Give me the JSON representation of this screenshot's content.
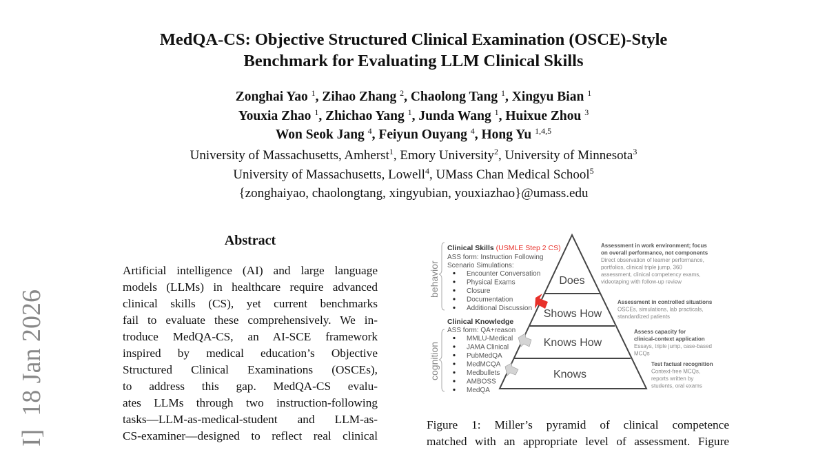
{
  "title": [
    "MedQA-CS: Objective Structured Clinical Examination (OSCE)-Style",
    "Benchmark for Evaluating LLM Clinical Skills"
  ],
  "authors": [
    [
      {
        "name": "Zonghai Yao",
        "sup": "1"
      },
      {
        "name": "Zihao Zhang",
        "sup": "2"
      },
      {
        "name": "Chaolong Tang",
        "sup": "1"
      },
      {
        "name": "Xingyu Bian",
        "sup": "1"
      }
    ],
    [
      {
        "name": "Youxia Zhao",
        "sup": "1"
      },
      {
        "name": "Zhichao Yang",
        "sup": "1"
      },
      {
        "name": "Junda Wang",
        "sup": "1"
      },
      {
        "name": "Huixue Zhou",
        "sup": "3"
      }
    ],
    [
      {
        "name": "Won Seok Jang",
        "sup": "4"
      },
      {
        "name": "Feiyun Ouyang",
        "sup": "4"
      },
      {
        "name": "Hong Yu",
        "sup": "1,4,5"
      }
    ]
  ],
  "affiliations": [
    [
      {
        "name": "University of Massachusetts, Amherst",
        "sup": "1"
      },
      {
        "name": "Emory University",
        "sup": "2"
      },
      {
        "name": "University of Minnesota",
        "sup": "3"
      }
    ],
    [
      {
        "name": "University of Massachusetts, Lowell",
        "sup": "4"
      },
      {
        "name": "UMass Chan Medical School",
        "sup": "5"
      }
    ]
  ],
  "emails": "{zonghaiyao, chaolongtang, xingyubian, youxiazhao}@umass.edu",
  "watermark": "I]  18 Jan 2026",
  "abstract": {
    "heading": "Abstract",
    "lines": [
      "Artificial intelligence (AI) and large language",
      "models (LLMs) in healthcare require advanced",
      "clinical skills (CS), yet current benchmarks",
      "fail to evaluate these comprehensively. We in-",
      "troduce MedQA-CS, an AI-SCE framework",
      "inspired by medical education’s Objective",
      "Structured Clinical Examinations (OSCEs),",
      "to address this gap.  MedQA-CS evalu-",
      "ates LLMs through two instruction-following",
      "tasks—LLM-as-medical-student and LLM-as-",
      "CS-examiner—designed to reflect real clinical"
    ]
  },
  "figure": {
    "side_labels": {
      "top": "behavior",
      "bottom": "cognition"
    },
    "skills_title": "Clinical Skills",
    "skills_tag": "(USMLE Step 2 CS)",
    "skills_form": "ASS form: Instruction Following",
    "skills_sub": "Scenario Simulations:",
    "skills_items": [
      "Encounter Conversation",
      "Physical Exams",
      "Closure",
      "Documentation",
      "Additional Discussion"
    ],
    "knowledge_title": "Clinical Knowledge",
    "knowledge_form": "ASS form: QA+reason",
    "knowledge_items": [
      "MMLU-Medical",
      "JAMA Clinical",
      "PubMedQA",
      "MedMCQA",
      "Medbullets",
      "AMBOSS",
      "MedQA"
    ],
    "levels": [
      "Does",
      "Shows How",
      "Knows How",
      "Knows"
    ],
    "assessments": [
      {
        "bold": [
          "Assessment in work environment; focus",
          "on overall performance, not components"
        ],
        "text": [
          "Direct observation of learner performance,",
          "portfolios, clinical triple jump, 360",
          "assessment, clinical competency exams,",
          "videotaping with follow-up review"
        ]
      },
      {
        "bold": [
          "Assessment in controlled situations"
        ],
        "text": [
          "OSCEs, simulations, lab practicals,",
          "standardized patients"
        ]
      },
      {
        "bold": [
          "Assess capacity for",
          "clinical-context application"
        ],
        "text": [
          "Essays, triple jump, case-based",
          "MCQs"
        ]
      },
      {
        "bold": [
          "Test factual recognition"
        ],
        "text": [
          "Context-free MCQs,",
          "reports written by",
          "students, oral exams"
        ]
      }
    ],
    "colors": {
      "highlight": "#e8302a",
      "arrow_gray": "#cfcfcf",
      "text_gray": "#777777"
    }
  },
  "caption": [
    "Figure 1:  Miller’s pyramid of clinical competence",
    "matched with an appropriate level of assessment. Figure"
  ]
}
